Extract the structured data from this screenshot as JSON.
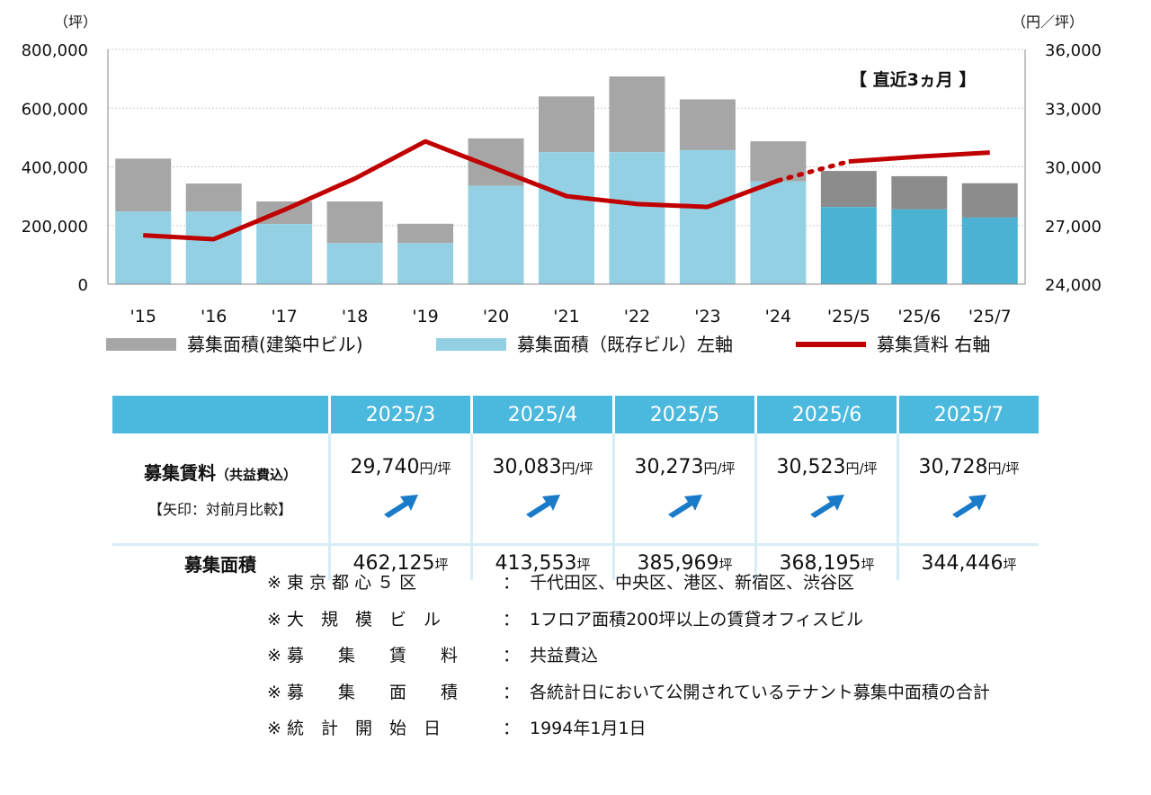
{
  "chart_data": {
    "type": "bar",
    "categories": [
      "'15",
      "'16",
      "'17",
      "'18",
      "'19",
      "'20",
      "'21",
      "'22",
      "'23",
      "'24",
      "'25/5",
      "'25/6",
      "'25/7"
    ],
    "series": [
      {
        "name": "募集面積（既存ビル）左軸",
        "type": "bar-stack-bottom",
        "axis": "left",
        "values": [
          248000,
          248000,
          205000,
          140000,
          140000,
          335000,
          450000,
          450000,
          457000,
          350000,
          263000,
          255000,
          227000
        ],
        "color": "#93d0e3",
        "color_recent": "#4bb2d3"
      },
      {
        "name": "募集面積(建築中ビル)",
        "type": "bar-stack-top",
        "axis": "left",
        "values": [
          180000,
          95000,
          77000,
          142000,
          66000,
          162000,
          190000,
          258000,
          173000,
          137000,
          123000,
          113000,
          117000
        ],
        "color": "#a6a6a6",
        "color_recent": "#8c8c8c"
      },
      {
        "name": "募集賃料 右軸",
        "type": "line",
        "axis": "right",
        "values": [
          26500,
          26300,
          27800,
          29400,
          31300,
          29900,
          28500,
          28100,
          27950,
          29300,
          30273,
          30523,
          30728
        ],
        "color": "#c00000"
      }
    ],
    "y_left": {
      "unit": "（坪）",
      "ylim": [
        0,
        800000
      ],
      "ticks": [
        "0",
        "200,000",
        "400,000",
        "600,000",
        "800,000"
      ]
    },
    "y_right": {
      "unit": "（円／坪）",
      "ylim": [
        24000,
        36000
      ],
      "ticks": [
        "24,000",
        "27,000",
        "30,000",
        "33,000",
        "36,000"
      ]
    },
    "annotation": "【 直近3ヵ月 】",
    "recent_count": 3,
    "grid": true,
    "legend_position": "bottom"
  },
  "legend": [
    {
      "label": "募集面積(建築中ビル)",
      "color": "#a6a6a6",
      "kind": "bar"
    },
    {
      "label": "募集面積（既存ビル）左軸",
      "color": "#93d0e3",
      "kind": "bar"
    },
    {
      "label": "募集賃料 右軸",
      "color": "#c00000",
      "kind": "line"
    }
  ],
  "table": {
    "months": [
      "2025/3",
      "2025/4",
      "2025/5",
      "2025/6",
      "2025/7"
    ],
    "rent_label": "募集賃料",
    "rent_label_note": "（共益費込）",
    "rent_sub": "【矢印：対前月比較】",
    "rent_values": [
      "29,740",
      "30,083",
      "30,273",
      "30,523",
      "30,728"
    ],
    "rent_unit": "円/坪",
    "arrow_direction": "up",
    "arrow_color": "#1a7bc9",
    "area_label": "募集面積",
    "area_values": [
      "462,125",
      "413,553",
      "385,969",
      "368,195",
      "344,446"
    ],
    "area_unit": "坪"
  },
  "notes": [
    {
      "label": "※ 東 京 都 心 ５ 区",
      "text": "千代田区、中央区、港区、新宿区、渋谷区"
    },
    {
      "label": "※ 大　規　模　ビ　ル",
      "text": "1フロア面積200坪以上の賃貸オフィスビル"
    },
    {
      "label": "※ 募　　集　　賃　　料",
      "text": "共益費込"
    },
    {
      "label": "※ 募　　集　　面　　積",
      "text": "各統計日において公開されているテナント募集中面積の合計"
    },
    {
      "label": "※ 統　計　開　始　日",
      "text": "1994年1月1日"
    }
  ],
  "note_separator": "："
}
